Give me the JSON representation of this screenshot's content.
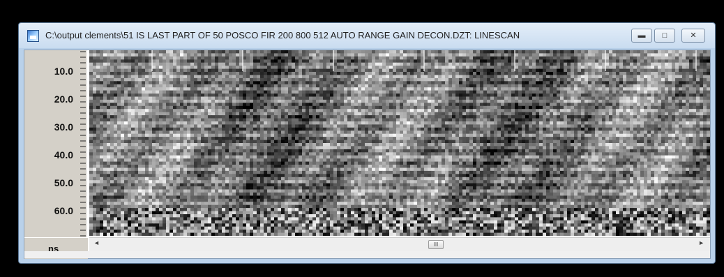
{
  "window": {
    "title": "C:\\output clements\\51 IS LAST PART OF 50 POSCO FIR 200 800 512 AUTO RANGE GAIN  DECON.DZT:  LINESCAN",
    "app_icon": "radar-app-icon",
    "controls": {
      "minimize_icon": "minimize-icon",
      "maximize_icon": "maximize-icon",
      "close_icon": "close-icon"
    }
  },
  "axis": {
    "unit": "ns",
    "labels": [
      {
        "text": "10.0",
        "value": 10
      },
      {
        "text": "20.0",
        "value": 20
      },
      {
        "text": "30.0",
        "value": 30
      },
      {
        "text": "40.0",
        "value": 40
      },
      {
        "text": "50.0",
        "value": 50
      },
      {
        "text": "60.0",
        "value": 60
      }
    ],
    "range": [
      3,
      69
    ]
  },
  "scrollbar": {
    "thumb_glyph": "III",
    "left_arrow": "◄",
    "right_arrow": "►",
    "position": 0.5
  }
}
